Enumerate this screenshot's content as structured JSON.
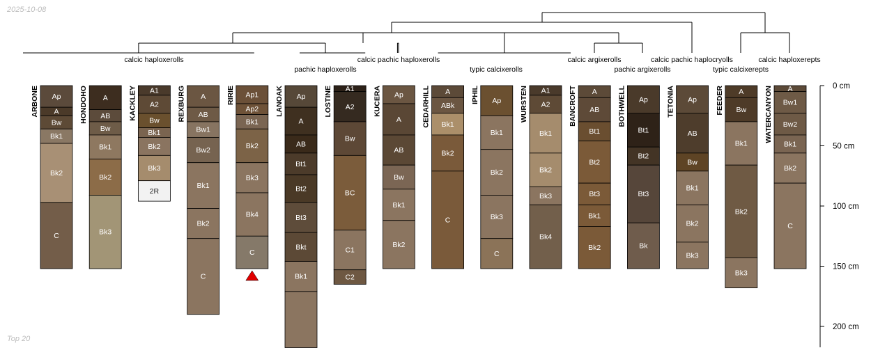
{
  "date": "2025-10-08",
  "footer": "Top 20",
  "chart_data": {
    "type": "soil-profile-sketch",
    "depth_unit": "cm",
    "depth_axis": {
      "ticks": [
        0,
        50,
        100,
        150,
        200
      ],
      "labels": [
        "0 cm",
        "50 cm",
        "100 cm",
        "150 cm",
        "200 cm"
      ],
      "range": [
        0,
        218
      ]
    },
    "profiles": [
      {
        "name": "ARBONE",
        "horizons": [
          {
            "name": "Ap",
            "top": 0,
            "bottom": 18,
            "color": "#5b4a3b"
          },
          {
            "name": "A",
            "top": 18,
            "bottom": 25,
            "color": "#4b3a29"
          },
          {
            "name": "Bw",
            "top": 25,
            "bottom": 36,
            "color": "#5d4a36"
          },
          {
            "name": "Bk1",
            "top": 36,
            "bottom": 48,
            "color": "#8a7864"
          },
          {
            "name": "Bk2",
            "top": 48,
            "bottom": 97,
            "color": "#a89075"
          },
          {
            "name": "C",
            "top": 97,
            "bottom": 152,
            "color": "#735d49"
          }
        ]
      },
      {
        "name": "HONDOHO",
        "horizons": [
          {
            "name": "A",
            "top": 0,
            "bottom": 20,
            "color": "#3d2d1f"
          },
          {
            "name": "AB",
            "top": 20,
            "bottom": 30,
            "color": "#5c4b3b"
          },
          {
            "name": "Bw",
            "top": 30,
            "bottom": 41,
            "color": "#6e5c48"
          },
          {
            "name": "Bk1",
            "top": 41,
            "bottom": 61,
            "color": "#8e7860"
          },
          {
            "name": "Bk2",
            "top": 61,
            "bottom": 91,
            "color": "#8c6c48"
          },
          {
            "name": "Bk3",
            "top": 91,
            "bottom": 152,
            "color": "#a29576"
          }
        ]
      },
      {
        "name": "KACKLEY",
        "horizons": [
          {
            "name": "A1",
            "top": 0,
            "bottom": 8,
            "color": "#4a3a2b"
          },
          {
            "name": "A2",
            "top": 8,
            "bottom": 23,
            "color": "#5e4a36"
          },
          {
            "name": "Bw",
            "top": 23,
            "bottom": 35,
            "color": "#6a502e"
          },
          {
            "name": "Bk1",
            "top": 35,
            "bottom": 43,
            "color": "#7a6450"
          },
          {
            "name": "Bk2",
            "top": 43,
            "bottom": 58,
            "color": "#8a7460"
          },
          {
            "name": "Bk3",
            "top": 58,
            "bottom": 79,
            "color": "#a58c6d"
          },
          {
            "name": "2R",
            "top": 79,
            "bottom": 96,
            "color": "#f2f2f2"
          }
        ]
      },
      {
        "name": "REXBURG",
        "horizons": [
          {
            "name": "A",
            "top": 0,
            "bottom": 18,
            "color": "#6b5642"
          },
          {
            "name": "AB",
            "top": 18,
            "bottom": 30,
            "color": "#6e5a46"
          },
          {
            "name": "Bw1",
            "top": 30,
            "bottom": 43,
            "color": "#877461"
          },
          {
            "name": "Bw2",
            "top": 43,
            "bottom": 64,
            "color": "#766350"
          },
          {
            "name": "Bk1",
            "top": 64,
            "bottom": 102,
            "color": "#8b7560"
          },
          {
            "name": "Bk2",
            "top": 102,
            "bottom": 127,
            "color": "#8b7560"
          },
          {
            "name": "C",
            "top": 127,
            "bottom": 190,
            "color": "#8b7560"
          }
        ]
      },
      {
        "name": "RIRIE",
        "horizons": [
          {
            "name": "Ap1",
            "top": 0,
            "bottom": 15,
            "color": "#6b5038"
          },
          {
            "name": "Ap2",
            "top": 15,
            "bottom": 24,
            "color": "#6e5238"
          },
          {
            "name": "Bk1",
            "top": 24,
            "bottom": 36,
            "color": "#7a6552"
          },
          {
            "name": "Bk2",
            "top": 36,
            "bottom": 64,
            "color": "#7c6347"
          },
          {
            "name": "Bk3",
            "top": 64,
            "bottom": 89,
            "color": "#8b7560"
          },
          {
            "name": "Bk4",
            "top": 89,
            "bottom": 125,
            "color": "#8b7560"
          },
          {
            "name": "C",
            "top": 125,
            "bottom": 152,
            "color": "#857969"
          }
        ]
      },
      {
        "name": "LANOAK",
        "horizons": [
          {
            "name": "Ap",
            "top": 0,
            "bottom": 18,
            "color": "#564838"
          },
          {
            "name": "A",
            "top": 18,
            "bottom": 41,
            "color": "#3f3020"
          },
          {
            "name": "AB",
            "top": 41,
            "bottom": 56,
            "color": "#3a2a1a"
          },
          {
            "name": "Bt1",
            "top": 56,
            "bottom": 74,
            "color": "#4c3b2a"
          },
          {
            "name": "Bt2",
            "top": 74,
            "bottom": 97,
            "color": "#4a3926"
          },
          {
            "name": "Bt3",
            "top": 97,
            "bottom": 122,
            "color": "#5e4c3a"
          },
          {
            "name": "Bkt",
            "top": 122,
            "bottom": 146,
            "color": "#5c4936"
          },
          {
            "name": "Bk1",
            "top": 146,
            "bottom": 171,
            "color": "#8b7560"
          },
          {
            "name": "",
            "top": 171,
            "bottom": 218,
            "color": "#8b7560"
          }
        ]
      },
      {
        "name": "LOSTINE",
        "horizons": [
          {
            "name": "A1",
            "top": 0,
            "bottom": 5,
            "color": "#2c2118"
          },
          {
            "name": "A2",
            "top": 5,
            "bottom": 30,
            "color": "#352a20"
          },
          {
            "name": "Bw",
            "top": 30,
            "bottom": 58,
            "color": "#5d4836"
          },
          {
            "name": "BC",
            "top": 58,
            "bottom": 120,
            "color": "#7b5c3b"
          },
          {
            "name": "C1",
            "top": 120,
            "bottom": 153,
            "color": "#8b7560"
          },
          {
            "name": "C2",
            "top": 153,
            "bottom": 165,
            "color": "#6e5842"
          }
        ]
      },
      {
        "name": "KUCERA",
        "horizons": [
          {
            "name": "Ap",
            "top": 0,
            "bottom": 15,
            "color": "#6b5642"
          },
          {
            "name": "A",
            "top": 15,
            "bottom": 41,
            "color": "#5a4735"
          },
          {
            "name": "AB",
            "top": 41,
            "bottom": 66,
            "color": "#5b4835"
          },
          {
            "name": "Bw",
            "top": 66,
            "bottom": 86,
            "color": "#7b6654"
          },
          {
            "name": "Bk1",
            "top": 86,
            "bottom": 112,
            "color": "#8b7560"
          },
          {
            "name": "Bk2",
            "top": 112,
            "bottom": 152,
            "color": "#8b7560"
          }
        ]
      },
      {
        "name": "CEDARHILL",
        "horizons": [
          {
            "name": "A",
            "top": 0,
            "bottom": 10,
            "color": "#5c4a38"
          },
          {
            "name": "ABk",
            "top": 10,
            "bottom": 23,
            "color": "#6b5642"
          },
          {
            "name": "Bk1",
            "top": 23,
            "bottom": 41,
            "color": "#ab8f6a"
          },
          {
            "name": "Bk2",
            "top": 41,
            "bottom": 71,
            "color": "#7a5a3a"
          },
          {
            "name": "C",
            "top": 71,
            "bottom": 152,
            "color": "#7a5a3a"
          }
        ]
      },
      {
        "name": "IPHIL",
        "horizons": [
          {
            "name": "Ap",
            "top": 0,
            "bottom": 25,
            "color": "#6b5030"
          },
          {
            "name": "Bk1",
            "top": 25,
            "bottom": 53,
            "color": "#8b7560"
          },
          {
            "name": "Bk2",
            "top": 53,
            "bottom": 91,
            "color": "#8b7560"
          },
          {
            "name": "Bk3",
            "top": 91,
            "bottom": 127,
            "color": "#8b7560"
          },
          {
            "name": "C",
            "top": 127,
            "bottom": 152,
            "color": "#8b7358"
          }
        ]
      },
      {
        "name": "WURSTEN",
        "horizons": [
          {
            "name": "A1",
            "top": 0,
            "bottom": 8,
            "color": "#4a3a2b"
          },
          {
            "name": "A2",
            "top": 8,
            "bottom": 23,
            "color": "#5e4a36"
          },
          {
            "name": "Bk1",
            "top": 23,
            "bottom": 56,
            "color": "#a58c6d"
          },
          {
            "name": "Bk2",
            "top": 56,
            "bottom": 84,
            "color": "#a58c6d"
          },
          {
            "name": "Bk3",
            "top": 84,
            "bottom": 99,
            "color": "#8b7560"
          },
          {
            "name": "Bk4",
            "top": 99,
            "bottom": 152,
            "color": "#725f4b"
          }
        ]
      },
      {
        "name": "BANCROFT",
        "horizons": [
          {
            "name": "A",
            "top": 0,
            "bottom": 10,
            "color": "#5c4a38"
          },
          {
            "name": "AB",
            "top": 10,
            "bottom": 30,
            "color": "#5e4a38"
          },
          {
            "name": "Bt1",
            "top": 30,
            "bottom": 46,
            "color": "#6a4e30"
          },
          {
            "name": "Bt2",
            "top": 46,
            "bottom": 81,
            "color": "#7b5a38"
          },
          {
            "name": "Bt3",
            "top": 81,
            "bottom": 99,
            "color": "#7b5a38"
          },
          {
            "name": "Bk1",
            "top": 99,
            "bottom": 117,
            "color": "#7b5a38"
          },
          {
            "name": "Bk2",
            "top": 117,
            "bottom": 152,
            "color": "#7b5a38"
          }
        ]
      },
      {
        "name": "BOTHWELL",
        "horizons": [
          {
            "name": "Ap",
            "top": 0,
            "bottom": 23,
            "color": "#4a3a2a"
          },
          {
            "name": "Bt1",
            "top": 23,
            "bottom": 51,
            "color": "#2e2218"
          },
          {
            "name": "Bt2",
            "top": 51,
            "bottom": 66,
            "color": "#433425"
          },
          {
            "name": "Bt3",
            "top": 66,
            "bottom": 114,
            "color": "#56463a"
          },
          {
            "name": "Bk",
            "top": 114,
            "bottom": 152,
            "color": "#6f5c4c"
          }
        ]
      },
      {
        "name": "TETONIA",
        "horizons": [
          {
            "name": "Ap",
            "top": 0,
            "bottom": 23,
            "color": "#5c4a38"
          },
          {
            "name": "AB",
            "top": 23,
            "bottom": 56,
            "color": "#4e3d2c"
          },
          {
            "name": "Bw",
            "top": 56,
            "bottom": 71,
            "color": "#5e4425"
          },
          {
            "name": "Bk1",
            "top": 71,
            "bottom": 99,
            "color": "#8b7560"
          },
          {
            "name": "Bk2",
            "top": 99,
            "bottom": 130,
            "color": "#8b7560"
          },
          {
            "name": "Bk3",
            "top": 130,
            "bottom": 152,
            "color": "#8b7560"
          }
        ]
      },
      {
        "name": "FEEDER",
        "horizons": [
          {
            "name": "A",
            "top": 0,
            "bottom": 10,
            "color": "#4e3b28"
          },
          {
            "name": "Bw",
            "top": 10,
            "bottom": 30,
            "color": "#4e3b28"
          },
          {
            "name": "Bk1",
            "top": 30,
            "bottom": 66,
            "color": "#8b7560"
          },
          {
            "name": "Bk2",
            "top": 66,
            "bottom": 143,
            "color": "#6f5a44"
          },
          {
            "name": "Bk3",
            "top": 143,
            "bottom": 168,
            "color": "#8b7560"
          }
        ]
      },
      {
        "name": "WATERCANYON",
        "horizons": [
          {
            "name": "A",
            "top": 0,
            "bottom": 5,
            "color": "#5c4a38"
          },
          {
            "name": "Bw1",
            "top": 5,
            "bottom": 23,
            "color": "#6e5a46"
          },
          {
            "name": "Bw2",
            "top": 23,
            "bottom": 41,
            "color": "#6e5a46"
          },
          {
            "name": "Bk1",
            "top": 41,
            "bottom": 56,
            "color": "#7a6552"
          },
          {
            "name": "Bk2",
            "top": 56,
            "bottom": 81,
            "color": "#8b7560"
          },
          {
            "name": "C",
            "top": 81,
            "bottom": 152,
            "color": "#8b7560"
          }
        ]
      }
    ],
    "markers": [
      {
        "profile": "RIRIE",
        "shape": "triangle",
        "color": "#e00000"
      }
    ],
    "dendrogram": {
      "groups": [
        {
          "label": "calcic haploxerolls",
          "members": [
            "ARBONE",
            "HONDOHO",
            "KACKLEY",
            "REXBURG",
            "RIRIE"
          ]
        },
        {
          "label": "pachic haploxerolls",
          "members": [
            "LANOAK",
            "LOSTINE"
          ]
        },
        {
          "label": "calcic pachic haploxerolls",
          "members": [
            "KUCERA"
          ]
        },
        {
          "label": "typic calcixerolls",
          "members": [
            "CEDARHILL",
            "IPHIL",
            "WURSTEN"
          ]
        },
        {
          "label": "calcic argixerolls",
          "members": [
            "BANCROFT"
          ]
        },
        {
          "label": "pachic argixerolls",
          "members": [
            "BOTHWELL"
          ]
        },
        {
          "label": "calcic pachic haplocryolls",
          "members": [
            "TETONIA"
          ]
        },
        {
          "label": "typic calcixerepts",
          "members": [
            "FEEDER"
          ]
        },
        {
          "label": "calcic haploxerepts",
          "members": [
            "WATERCANYON"
          ]
        }
      ]
    }
  }
}
